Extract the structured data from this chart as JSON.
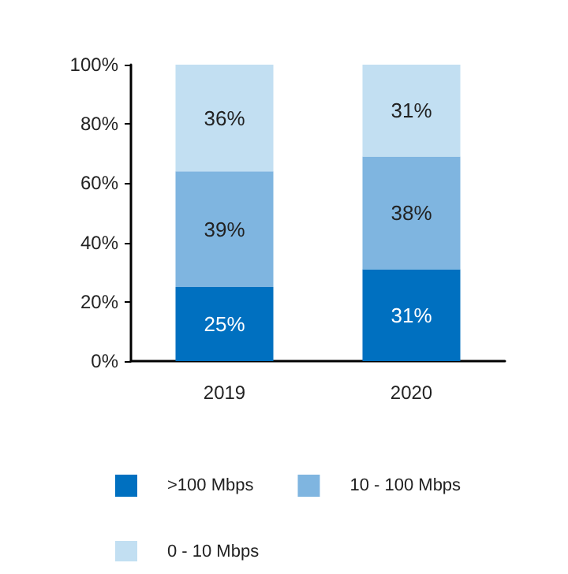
{
  "chart_data": {
    "type": "bar",
    "stacked": true,
    "categories": [
      "2019",
      "2020"
    ],
    "series": [
      {
        "name": ">100 Mbps",
        "color": "#0070c0",
        "values": [
          25,
          31
        ],
        "value_labels": [
          "25%",
          "31%"
        ]
      },
      {
        "name": "10 - 100 Mbps",
        "color": "#7fb5e0",
        "values": [
          39,
          38
        ],
        "value_labels": [
          "39%",
          "38%"
        ]
      },
      {
        "name": "0 - 10 Mbps",
        "color": "#c2dff2",
        "values": [
          36,
          31
        ],
        "value_labels": [
          "36%",
          "31%"
        ]
      }
    ],
    "ylim": [
      0,
      100
    ],
    "yticks": [
      {
        "value": 0,
        "label": "0%"
      },
      {
        "value": 20,
        "label": "20%"
      },
      {
        "value": 40,
        "label": "40%"
      },
      {
        "value": 60,
        "label": "60%"
      },
      {
        "value": 80,
        "label": "80%"
      },
      {
        "value": 100,
        "label": "100%"
      }
    ],
    "grid": false,
    "legend": "bottom"
  }
}
